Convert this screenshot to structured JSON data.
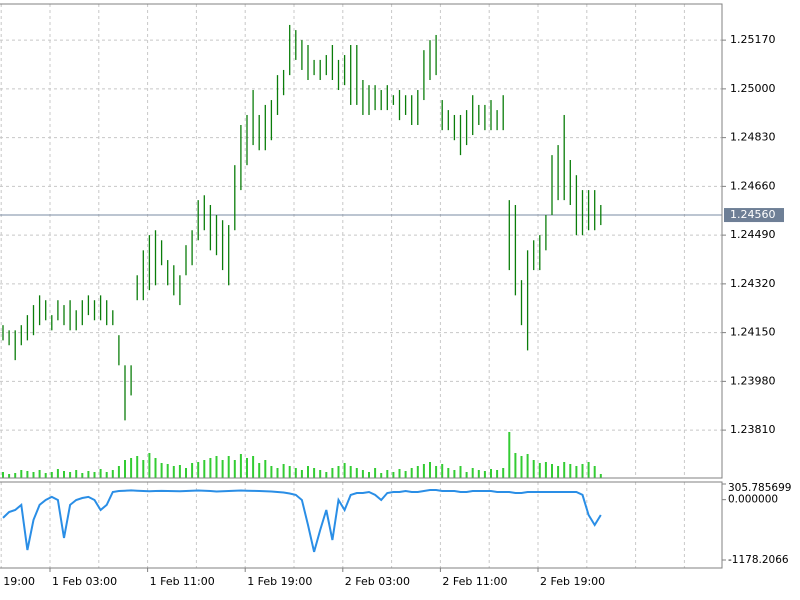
{
  "chart_data": {
    "type": "ohlc",
    "x_labels": [
      "19:00",
      "1 Feb 03:00",
      "1 Feb 11:00",
      "1 Feb 19:00",
      "2 Feb 03:00",
      "2 Feb 11:00",
      "2 Feb 19:00"
    ],
    "color": "#0a7d0a",
    "high": [
      1.24176,
      1.24158,
      1.24158,
      1.24176,
      1.24211,
      1.24246,
      1.2428,
      1.24263,
      1.24211,
      1.24263,
      1.24246,
      1.24263,
      1.24228,
      1.24263,
      1.2428,
      1.24263,
      1.2428,
      1.24263,
      1.24228,
      1.24141,
      1.24036,
      1.24036,
      1.2435,
      1.24437,
      1.2449,
      1.24507,
      1.24472,
      1.24403,
      1.24385,
      1.2435,
      1.24455,
      1.24507,
      1.24612,
      1.24629,
      1.24595,
      1.2456,
      1.24542,
      1.24525,
      1.24734,
      1.24874,
      1.24909,
      1.24996,
      1.24909,
      1.24944,
      1.24961,
      1.25048,
      1.25066,
      1.25223,
      1.25205,
      1.2517,
      1.25153,
      1.25101,
      1.25101,
      1.25118,
      1.25153,
      1.25101,
      1.25118,
      1.25153,
      1.25153,
      1.25031,
      1.25013,
      1.25013,
      1.24996,
      1.25013,
      1.24978,
      1.24996,
      1.24978,
      1.24978,
      1.24996,
      1.25135,
      1.2517,
      1.25188,
      1.24961,
      1.24926,
      1.24909,
      1.24909,
      1.24926,
      1.24978,
      1.24944,
      1.24944,
      1.24961,
      1.24926,
      1.24978,
      1.24612,
      1.24595,
      1.24333,
      1.24437,
      1.24472,
      1.2449,
      1.2456,
      1.24769,
      1.24804,
      1.24909,
      1.24752,
      1.24699,
      1.24647,
      1.24647,
      1.24647,
      1.24595
    ],
    "low": [
      1.24123,
      1.24106,
      1.24054,
      1.24106,
      1.24123,
      1.24141,
      1.24176,
      1.24193,
      1.24158,
      1.24193,
      1.24176,
      1.24158,
      1.24158,
      1.24176,
      1.24211,
      1.24193,
      1.24193,
      1.24176,
      1.24176,
      1.24036,
      1.23844,
      1.23931,
      1.24263,
      1.24263,
      1.24298,
      1.24315,
      1.24385,
      1.24315,
      1.2428,
      1.24246,
      1.2435,
      1.24385,
      1.24472,
      1.24507,
      1.24437,
      1.2442,
      1.24368,
      1.24315,
      1.24507,
      1.24647,
      1.24734,
      1.24804,
      1.24786,
      1.24786,
      1.24821,
      1.24909,
      1.24978,
      1.25048,
      1.25101,
      1.25066,
      1.25031,
      1.25048,
      1.25031,
      1.25048,
      1.25031,
      1.24996,
      1.25013,
      1.24944,
      1.24944,
      1.24909,
      1.24909,
      1.24926,
      1.24926,
      1.24926,
      1.24944,
      1.24891,
      1.24909,
      1.24874,
      1.24874,
      1.24961,
      1.25031,
      1.25048,
      1.24856,
      1.24856,
      1.24821,
      1.24769,
      1.24804,
      1.24839,
      1.24874,
      1.24856,
      1.24856,
      1.24856,
      1.24856,
      1.24368,
      1.2428,
      1.24176,
      1.24088,
      1.24368,
      1.24368,
      1.24437,
      1.2456,
      1.24612,
      1.24612,
      1.24595,
      1.2449,
      1.2449,
      1.24507,
      1.24507,
      1.24525
    ],
    "ylim": [
      1.23643,
      1.25296
    ],
    "yticks": [
      {
        "value": 1.2517,
        "label": "1.25170"
      },
      {
        "value": 1.25,
        "label": "1.25000"
      },
      {
        "value": 1.2483,
        "label": "1.24830"
      },
      {
        "value": 1.2466,
        "label": "1.24660"
      },
      {
        "value": 1.2449,
        "label": "1.24490"
      },
      {
        "value": 1.2432,
        "label": "1.24320"
      },
      {
        "value": 1.2415,
        "label": "1.24150"
      },
      {
        "value": 1.2398,
        "label": "1.23980"
      },
      {
        "value": 1.2381,
        "label": "1.23810"
      }
    ],
    "last_price": {
      "value": 1.2456,
      "label": "1.24560"
    },
    "grid": true,
    "volume": {
      "color": "#33cc33",
      "values": [
        6,
        4,
        5,
        8,
        7,
        6,
        8,
        5,
        6,
        9,
        7,
        6,
        8,
        5,
        7,
        6,
        9,
        6,
        8,
        12,
        18,
        20,
        22,
        18,
        25,
        20,
        15,
        14,
        12,
        13,
        10,
        15,
        16,
        18,
        20,
        22,
        18,
        22,
        18,
        24,
        20,
        22,
        15,
        18,
        12,
        10,
        14,
        12,
        10,
        8,
        12,
        10,
        8,
        6,
        10,
        12,
        15,
        12,
        10,
        8,
        6,
        10,
        5,
        8,
        6,
        9,
        7,
        10,
        12,
        14,
        16,
        12,
        14,
        10,
        8,
        12,
        6,
        10,
        8,
        7,
        9,
        8,
        10,
        46,
        25,
        22,
        24,
        18,
        15,
        16,
        14,
        12,
        16,
        14,
        12,
        14,
        16,
        12,
        4
      ]
    },
    "indicator": {
      "color": "#2a8ee6",
      "values": [
        -357,
        -240,
        -201,
        -103,
        -982,
        -396,
        -103,
        -6,
        53,
        -6,
        -748,
        -103,
        -6,
        33,
        53,
        -6,
        -201,
        -103,
        150,
        170,
        175,
        180,
        175,
        170,
        165,
        170,
        172,
        170,
        168,
        165,
        170,
        175,
        178,
        175,
        170,
        160,
        165,
        170,
        175,
        178,
        175,
        172,
        170,
        165,
        160,
        150,
        140,
        120,
        92,
        -6,
        -494,
        -1021,
        -592,
        -201,
        -787,
        -6,
        -201,
        92,
        131,
        131,
        150,
        92,
        -6,
        131,
        150,
        150,
        170,
        150,
        150,
        170,
        189,
        189,
        170,
        170,
        170,
        150,
        150,
        170,
        170,
        170,
        170,
        150,
        150,
        150,
        131,
        131,
        150,
        150,
        150,
        150,
        150,
        150,
        150,
        150,
        150,
        92,
        -299,
        -494,
        -299
      ],
      "y2lim": [
        -1178.2066,
        305.785699
      ],
      "y2ticks": [
        {
          "value": 305.785699,
          "label": "305.785699"
        },
        {
          "value": 0,
          "label": "0.000000"
        },
        {
          "value": -1178.2066,
          "label": "-1178.2066"
        }
      ]
    }
  }
}
